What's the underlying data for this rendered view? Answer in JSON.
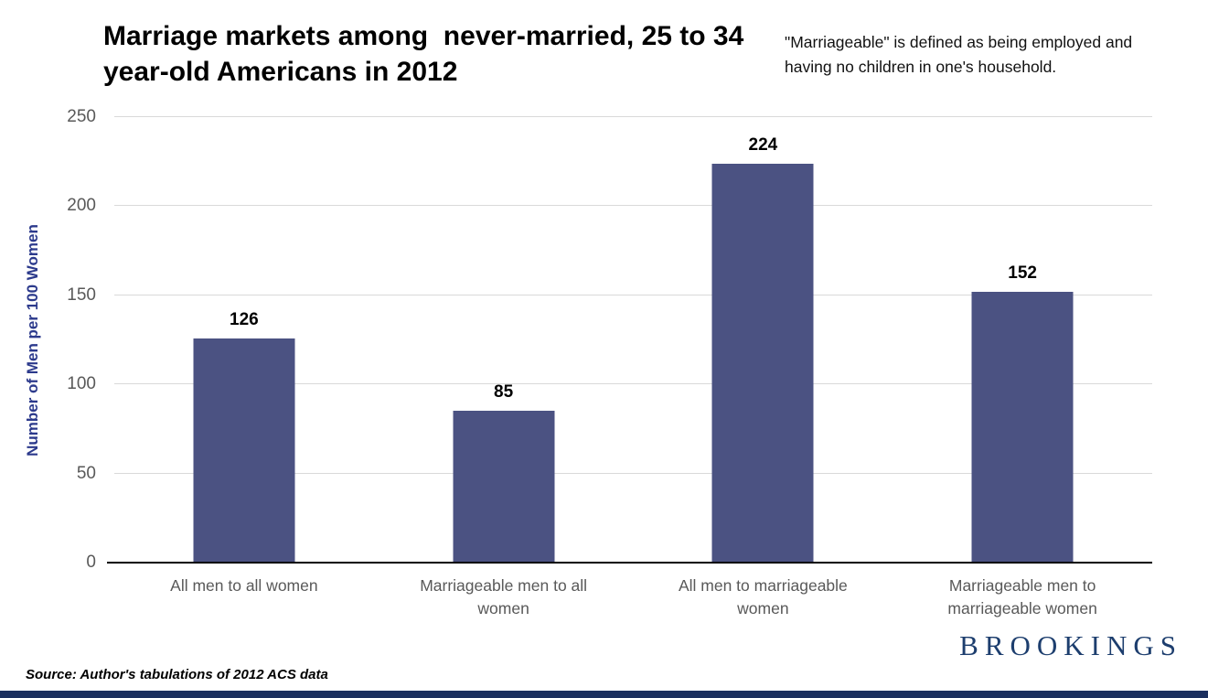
{
  "title": "Marriage markets among  never-married, 25 to 34 year-old Americans in 2012",
  "annotation": "\"Marriageable\" is defined as being employed and having no children in one's household.",
  "source": "Source: Author's tabulations of 2012 ACS data",
  "logo": "BROOKINGS",
  "colors": {
    "bar": "#4b5282",
    "grid": "#d9d9d9",
    "tick_text": "#595959",
    "ylabel_text": "#2c3a8c",
    "logo": "#1d3e6e",
    "strip": "#1b2f5e",
    "axis_line": "#000000"
  },
  "chart_data": {
    "type": "bar",
    "title": "Marriage markets among never-married, 25 to 34 year-old Americans in 2012",
    "categories": [
      "All men to all women",
      "Marriageable men to all women",
      "All men to marriageable women",
      "Marriageable men to marriageable women"
    ],
    "values": [
      126,
      85,
      224,
      152
    ],
    "xlabel": "",
    "ylabel": "Number of Men per 100 Women",
    "ylim": [
      0,
      250
    ],
    "yticks": [
      0,
      50,
      100,
      150,
      200,
      250
    ],
    "grid": true,
    "legend_position": "none",
    "bar_color": "#4b5282"
  }
}
